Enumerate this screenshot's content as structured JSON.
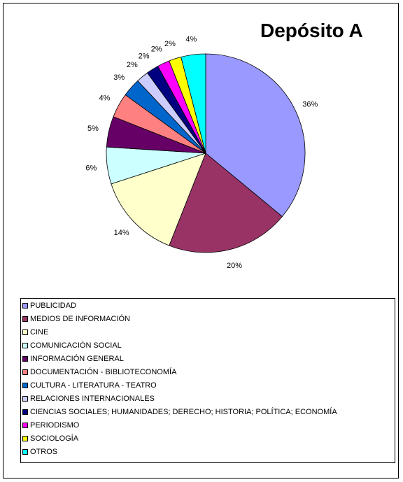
{
  "chart_data": {
    "type": "pie",
    "title": "Depósito A",
    "slices": [
      {
        "label": "PUBLICIDAD",
        "value": 36,
        "display": "36%",
        "color": "#9999FF"
      },
      {
        "label": "MEDIOS DE INFORMACIÓN",
        "value": 20,
        "display": "20%",
        "color": "#993366"
      },
      {
        "label": "CINE",
        "value": 14,
        "display": "14%",
        "color": "#FFFFCC"
      },
      {
        "label": "COMUNICACIÓN SOCIAL",
        "value": 6,
        "display": "6%",
        "color": "#CCFFFF"
      },
      {
        "label": "INFORMACIÓN GENERAL",
        "value": 5,
        "display": "5%",
        "color": "#660066"
      },
      {
        "label": "DOCUMENTACIÓN - BIBLIOTECONOMÍA",
        "value": 4,
        "display": "4%",
        "color": "#FF8080"
      },
      {
        "label": "CULTURA - LITERATURA - TEATRO",
        "value": 3,
        "display": "3%",
        "color": "#0066CC"
      },
      {
        "label": "RELACIONES INTERNACIONALES",
        "value": 2,
        "display": "2%",
        "color": "#CCCCFF"
      },
      {
        "label": "CIENCIAS SOCIALES; HUMANIDADES; DERECHO; HISTORIA; POLÍTICA; ECONOMÍA",
        "value": 2,
        "display": "2%",
        "color": "#000080"
      },
      {
        "label": "PERIODISMO",
        "value": 2,
        "display": "2%",
        "color": "#FF00FF"
      },
      {
        "label": "SOCIOLOGÍA",
        "value": 2,
        "display": "2%",
        "color": "#FFFF00"
      },
      {
        "label": "OTROS",
        "value": 4,
        "display": "4%",
        "color": "#00FFFF"
      }
    ],
    "legend_position": "bottom"
  }
}
